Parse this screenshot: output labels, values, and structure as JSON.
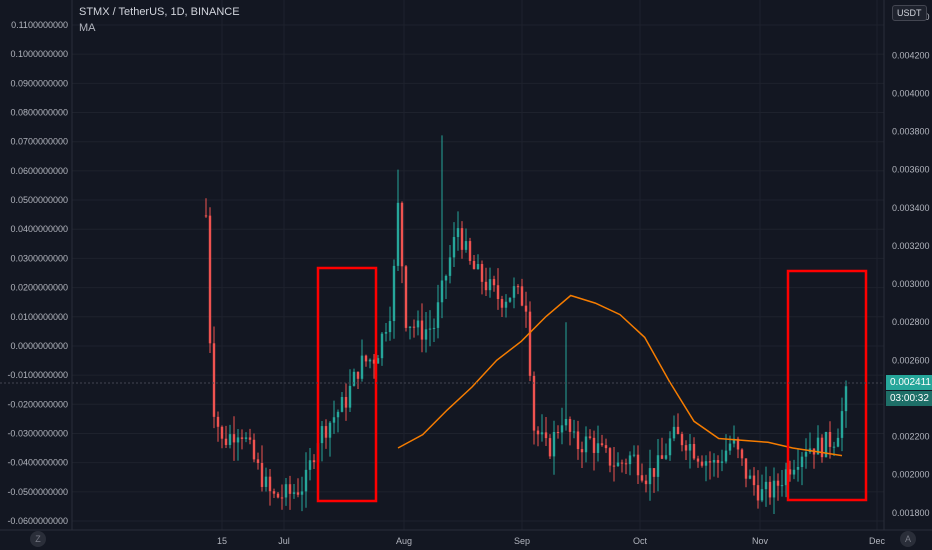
{
  "header": {
    "title": "STMX / TetherUS, 1D, BINANCE",
    "indicator": "MA"
  },
  "axis_currency": "USDT",
  "corner_left": "Z",
  "corner_right": "A",
  "price_tag": {
    "price": "0.002411",
    "countdown": "03:00:32",
    "color": "#26a69a"
  },
  "colors": {
    "up": "#26a69a",
    "down": "#ef5350",
    "ma": "#f57c00",
    "box": "#ff0000",
    "bg": "#131722",
    "grid": "#2a2e39"
  },
  "chart_data": {
    "type": "candlestick",
    "left_axis": {
      "ticks": [
        "0.1100000000",
        "0.1000000000",
        "0.0900000000",
        "0.0800000000",
        "0.0700000000",
        "0.0600000000",
        "0.0500000000",
        "0.0400000000",
        "0.0300000000",
        "0.0200000000",
        "0.0100000000",
        "0.0000000000",
        "-0.0100000000",
        "-0.0200000000",
        "-0.0300000000",
        "-0.0400000000",
        "-0.0500000000",
        "-0.0600000000"
      ]
    },
    "right_axis": {
      "ticks": [
        "0.004400",
        "0.004200",
        "0.004000",
        "0.003800",
        "0.003600",
        "0.003400",
        "0.003200",
        "0.003000",
        "0.002800",
        "0.002600",
        "0.002400",
        "0.002200",
        "0.002000",
        "0.001800"
      ],
      "ylim": [
        0.00171,
        0.00449
      ]
    },
    "x_ticks": [
      "15",
      "Jul",
      "Aug",
      "Sep",
      "Oct",
      "Nov",
      "Dec"
    ],
    "ma_line": [
      [
        0.00214,
        0.00232
      ],
      [
        0.00221,
        0.00237
      ],
      [
        0.00234,
        0.0026
      ],
      [
        0.00246,
        0.00275
      ],
      [
        0.0026,
        0.00288
      ],
      [
        0.0027,
        0.00294
      ],
      [
        0.00283,
        0.0029
      ],
      [
        0.00296,
        0.00284
      ],
      [
        0.0031,
        0.00272
      ],
      [
        0.00322,
        0.00249
      ],
      [
        0.00334,
        0.00228
      ],
      [
        0.00346,
        0.00219
      ],
      [
        0.00358,
        0.00218
      ],
      [
        0.00368,
        0.00217
      ],
      [
        0.0038,
        0.00214
      ],
      [
        0.00392,
        0.00212
      ],
      [
        0.00402,
        0.0021
      ]
    ],
    "candles_note": "",
    "highlight_boxes": [
      "box-1",
      "box-2"
    ]
  }
}
